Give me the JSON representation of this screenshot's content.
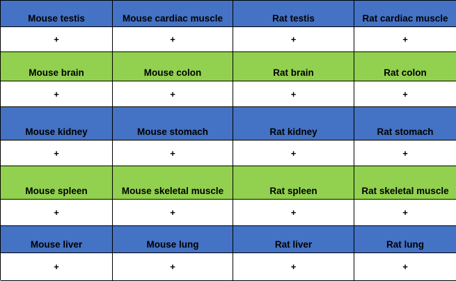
{
  "colors": {
    "blue_header": "#4472c4",
    "green_header": "#92d050",
    "value_background": "#ffffff",
    "border": "#000000"
  },
  "rows": [
    {
      "header_color": "blue",
      "headers": [
        "Mouse testis",
        "Mouse cardiac muscle",
        "Rat testis",
        "Rat cardiac muscle"
      ],
      "values": [
        "+",
        "+",
        "+",
        "+"
      ]
    },
    {
      "header_color": "green",
      "headers": [
        "Mouse brain",
        "Mouse colon",
        "Rat brain",
        "Rat colon"
      ],
      "values": [
        "+",
        "+",
        "+",
        "+"
      ]
    },
    {
      "header_color": "blue",
      "headers": [
        "Mouse kidney",
        "Mouse stomach",
        "Rat kidney",
        "Rat stomach"
      ],
      "values": [
        "+",
        "+",
        "+",
        "+"
      ]
    },
    {
      "header_color": "green",
      "headers": [
        "Mouse spleen",
        "Mouse skeletal muscle",
        "Rat spleen",
        "Rat skeletal muscle"
      ],
      "values": [
        "+",
        "+",
        "+",
        "+"
      ]
    },
    {
      "header_color": "blue",
      "headers": [
        "Mouse liver",
        "Mouse lung",
        "Rat liver",
        "Rat lung"
      ],
      "values": [
        "+",
        "+",
        "+",
        "+"
      ]
    }
  ]
}
